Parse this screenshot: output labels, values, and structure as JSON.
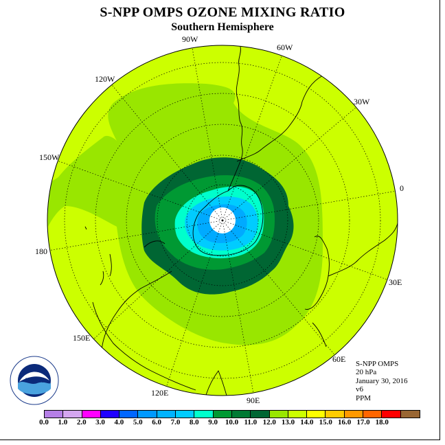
{
  "title": "S-NPP OMPS OZONE MIXING RATIO",
  "subtitle": "Southern Hemisphere",
  "map": {
    "projection": "south-polar-stereographic",
    "longitude_labels": [
      "90W",
      "60W",
      "30W",
      "0",
      "30E",
      "60E",
      "90E",
      "120E",
      "150E",
      "180",
      "150W",
      "120W"
    ],
    "regions": [
      {
        "level_ppm": "10.0-11.0",
        "color": "#99e600"
      },
      {
        "level_ppm": "9.0-10.0",
        "color": "#006633"
      },
      {
        "level_ppm": "8.0-9.0",
        "color": "#009933"
      },
      {
        "level_ppm": "7.0-8.0",
        "color": "#00ffcc"
      },
      {
        "level_ppm": "6.0-7.0",
        "color": "#00ccff"
      },
      {
        "level_ppm": "5.0-6.0",
        "color": "#00aaff"
      },
      {
        "level_ppm": "11.0-12.0",
        "color": "#ccff00"
      }
    ]
  },
  "info": {
    "instrument": "S-NPP OMPS",
    "level": "20 hPa",
    "date": "January 30, 2016",
    "version": "v6",
    "units": "PPM"
  },
  "colorbar": {
    "colors": [
      "#b57fe6",
      "#d4a6f0",
      "#ff00ff",
      "#1f00ff",
      "#0066ff",
      "#0099ff",
      "#00b3ff",
      "#00ccff",
      "#00ffcc",
      "#009933",
      "#007a33",
      "#006633",
      "#99e600",
      "#ccff00",
      "#ffff00",
      "#ffcc00",
      "#ff9900",
      "#ff6600",
      "#ff0000",
      "#996633"
    ],
    "ticks": [
      "0.0",
      "1.0",
      "2.0",
      "3.0",
      "4.0",
      "5.0",
      "6.0",
      "7.0",
      "8.0",
      "9.0",
      "10.0",
      "11.0",
      "12.0",
      "13.0",
      "14.0",
      "15.0",
      "16.0",
      "17.0",
      "18.0"
    ]
  },
  "logo": {
    "text": "NOAA"
  }
}
